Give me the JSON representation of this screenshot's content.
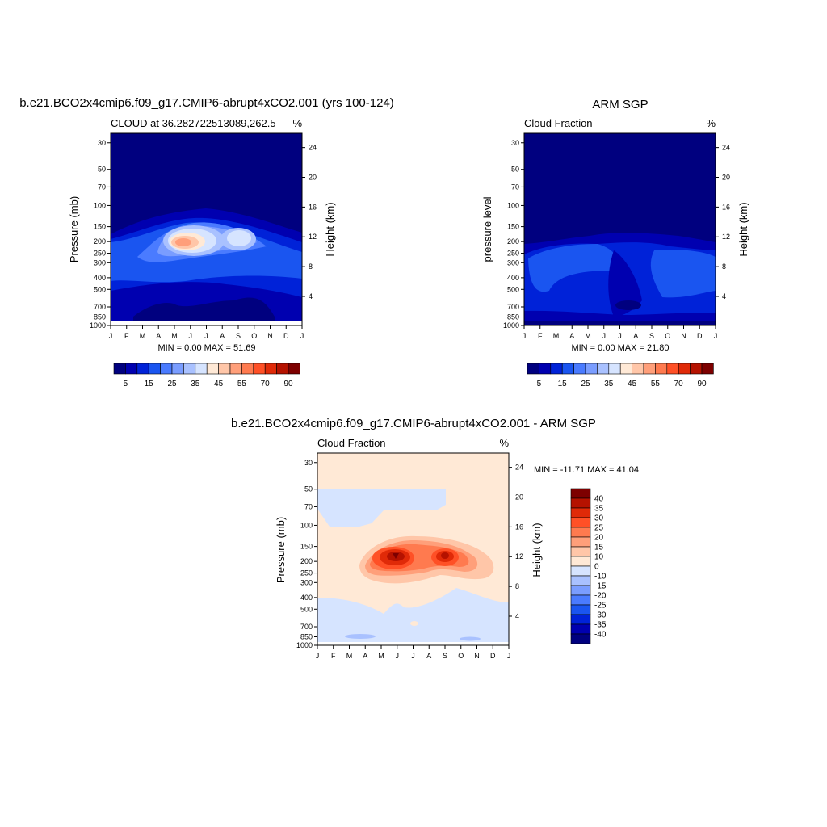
{
  "chart_data": [
    {
      "type": "heatmap",
      "title": "b.e21.BCO2x4cmip6.f09_g17.CMIP6-abrupt4xCO2.001 (yrs 100-124)",
      "left_string": "CLOUD at 36.282722513089,262.5",
      "right_string": "%",
      "ylabel": "Pressure (mb)",
      "ylabel_right": "Height (km)",
      "xlabel": "",
      "x_ticks": [
        "J",
        "F",
        "M",
        "A",
        "M",
        "J",
        "J",
        "A",
        "S",
        "O",
        "N",
        "D",
        "J"
      ],
      "y_ticks": [
        "30",
        "50",
        "70",
        "100",
        "150",
        "200",
        "250",
        "300",
        "400",
        "500",
        "700",
        "850",
        "1000"
      ],
      "y_ticks_right": [
        "24",
        "20",
        "16",
        "12",
        "8",
        "4"
      ],
      "min_max": "MIN =   0.00 MAX =  51.69",
      "colorbar": {
        "orientation": "horizontal",
        "labels": [
          "5",
          "15",
          "25",
          "35",
          "45",
          "55",
          "70",
          "90"
        ],
        "colors": [
          "#00007f",
          "#0000b0",
          "#0022d8",
          "#1a55f0",
          "#4a7bff",
          "#7a9dff",
          "#a9c1ff",
          "#d6e4ff",
          "#ffe9d6",
          "#ffc6a8",
          "#ff9f7a",
          "#ff7a4f",
          "#ff5026",
          "#e02a08",
          "#b51200",
          "#7d0000"
        ]
      }
    },
    {
      "type": "heatmap",
      "title": "ARM SGP",
      "left_string": "Cloud Fraction",
      "right_string": "%",
      "ylabel": "pressure level",
      "ylabel_right": "Height (km)",
      "xlabel": "",
      "x_ticks": [
        "J",
        "F",
        "M",
        "A",
        "M",
        "J",
        "J",
        "A",
        "S",
        "O",
        "N",
        "D",
        "J"
      ],
      "y_ticks": [
        "30",
        "50",
        "70",
        "100",
        "150",
        "200",
        "250",
        "300",
        "400",
        "500",
        "700",
        "850",
        "1000"
      ],
      "y_ticks_right": [
        "24",
        "20",
        "16",
        "12",
        "8",
        "4"
      ],
      "min_max": "MIN =   0.00 MAX =  21.80",
      "colorbar": {
        "orientation": "horizontal",
        "labels": [
          "5",
          "15",
          "25",
          "35",
          "45",
          "55",
          "70",
          "90"
        ],
        "colors": [
          "#00007f",
          "#0000b0",
          "#0022d8",
          "#1a55f0",
          "#4a7bff",
          "#7a9dff",
          "#a9c1ff",
          "#d6e4ff",
          "#ffe9d6",
          "#ffc6a8",
          "#ff9f7a",
          "#ff7a4f",
          "#ff5026",
          "#e02a08",
          "#b51200",
          "#7d0000"
        ]
      }
    },
    {
      "type": "heatmap",
      "title": "b.e21.BCO2x4cmip6.f09_g17.CMIP6-abrupt4xCO2.001 - ARM SGP",
      "left_string": "Cloud Fraction",
      "right_string": "%",
      "ylabel": "Pressure (mb)",
      "ylabel_right": "Height (km)",
      "xlabel": "",
      "x_ticks": [
        "J",
        "F",
        "M",
        "A",
        "M",
        "J",
        "J",
        "A",
        "S",
        "O",
        "N",
        "D",
        "J"
      ],
      "y_ticks": [
        "30",
        "50",
        "70",
        "100",
        "150",
        "200",
        "250",
        "300",
        "400",
        "500",
        "700",
        "850",
        "1000"
      ],
      "y_ticks_right": [
        "24",
        "20",
        "16",
        "12",
        "8",
        "4"
      ],
      "min_max": "MIN = -11.71 MAX =  41.04",
      "colorbar": {
        "orientation": "vertical",
        "labels": [
          "40",
          "35",
          "30",
          "25",
          "20",
          "15",
          "10",
          "0",
          "-10",
          "-15",
          "-20",
          "-25",
          "-30",
          "-35",
          "-40"
        ],
        "colors": [
          "#7d0000",
          "#b51200",
          "#e02a08",
          "#ff5026",
          "#ff7a4f",
          "#ff9f7a",
          "#ffc6a8",
          "#ffe9d6",
          "#d6e4ff",
          "#a9c1ff",
          "#7a9dff",
          "#4a7bff",
          "#1a55f0",
          "#0022d8",
          "#0000b0",
          "#00007f"
        ]
      }
    }
  ]
}
